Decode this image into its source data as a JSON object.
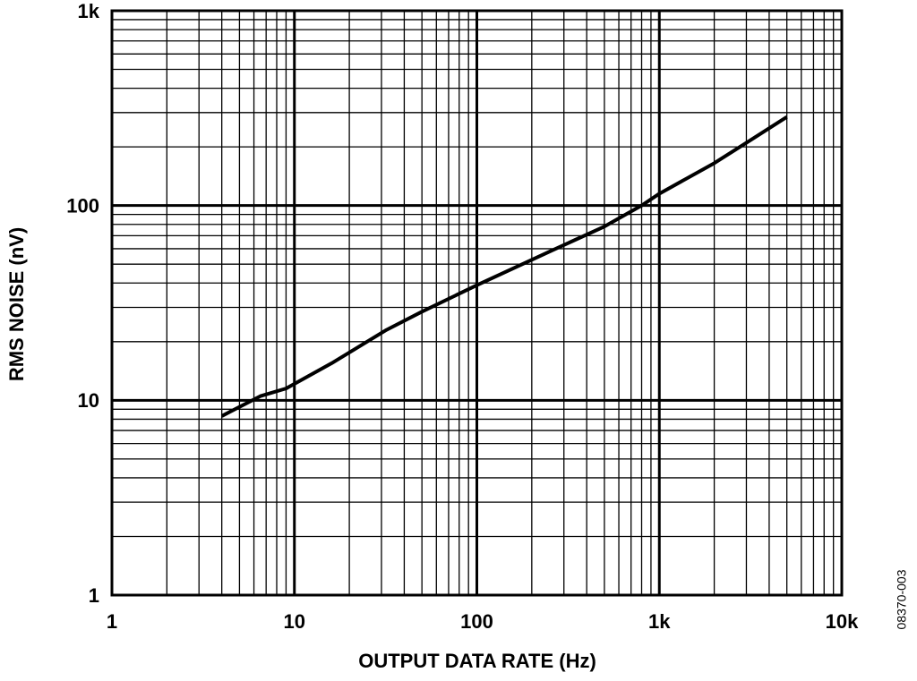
{
  "chart_data": {
    "type": "line",
    "log_x": true,
    "log_y": true,
    "grid": true,
    "minor_grid": true,
    "x_label": "OUTPUT DATA RATE (Hz)",
    "y_label": "RMS NOISE (nV)",
    "figure_id": "08370-003",
    "xlim": [
      1,
      10000
    ],
    "ylim": [
      1,
      1000
    ],
    "xticks": [
      1,
      10,
      100,
      {
        "value": 1000,
        "label": "1k"
      },
      {
        "value": 10000,
        "label": "10k"
      }
    ],
    "yticks": [
      1,
      10,
      100,
      {
        "value": 1000,
        "label": "1k"
      }
    ],
    "series": [
      {
        "name": "RMS noise",
        "color": "#000000",
        "x": [
          4,
          6.5,
          9,
          16,
          32,
          50,
          100,
          250,
          500,
          800,
          1000,
          2000,
          3000,
          5000
        ],
        "values": [
          8.3,
          10.5,
          11.5,
          15.5,
          23,
          28.5,
          39,
          58,
          78,
          100,
          115,
          165,
          210,
          285
        ]
      }
    ]
  }
}
